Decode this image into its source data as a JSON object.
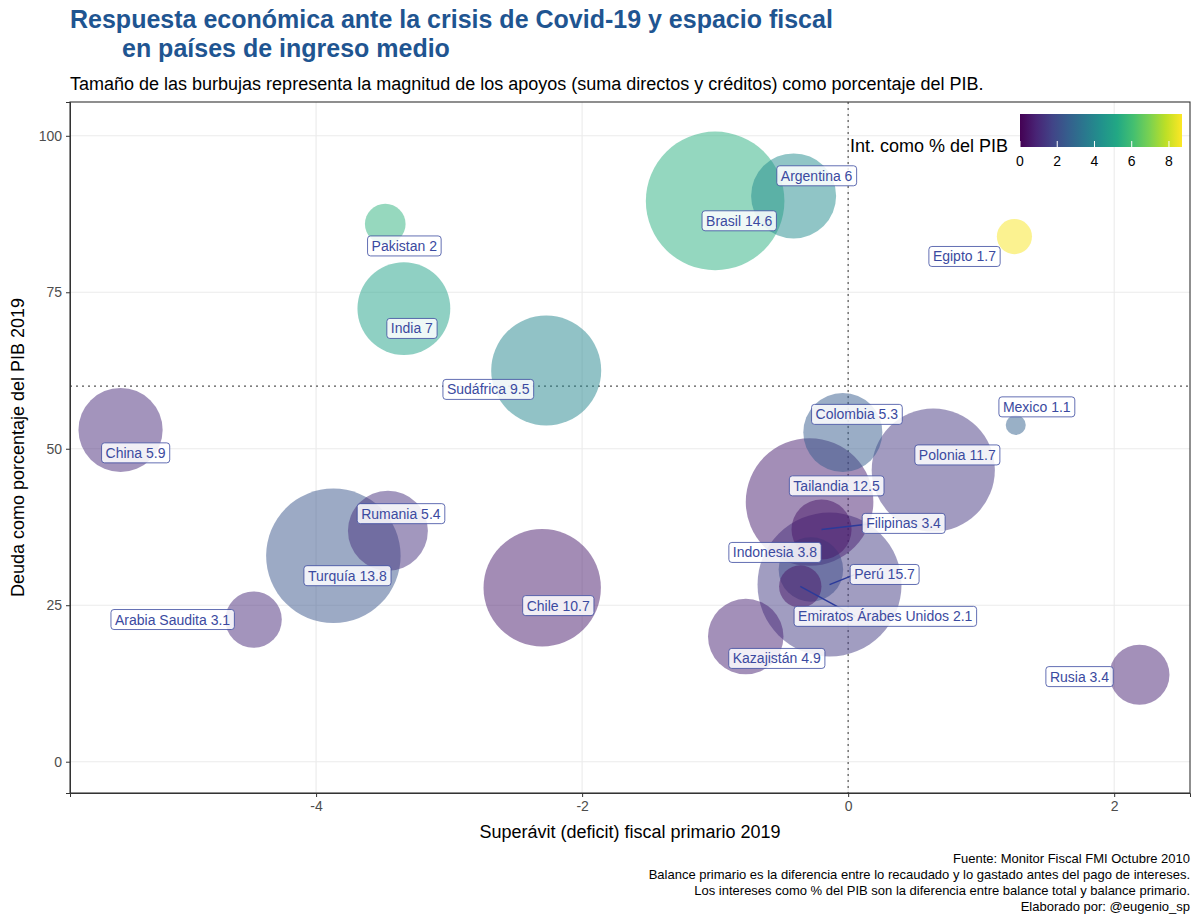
{
  "chart_data": {
    "type": "scatter",
    "title": [
      "Respuesta económica ante la crisis de Covid-19 y espacio fiscal",
      "en países de ingreso medio"
    ],
    "subtitle": "Tamaño de las burbujas representa la magnitud de los apoyos (suma directos y créditos) como porcentaje del PIB.",
    "x_label": "Superávit (deficit) fiscal primario 2019",
    "y_label": "Deuda como porcentaje del PIB 2019",
    "caption": [
      "Fuente: Monitor Fiscal FMI Octubre 2010",
      "Balance primario es la diferencia entre lo recaudado y lo gastado antes del pago de intereses.",
      "Los intereses como % del PIB son la diferencia entre balance total y balance primario.",
      "Elaborado por: @eugenio_sp"
    ],
    "xlim": [
      -5.85,
      2.57
    ],
    "ylim": [
      -5,
      105.4
    ],
    "xticks": [
      -4,
      -2,
      0,
      2
    ],
    "yticks": [
      0,
      25,
      50,
      75,
      100
    ],
    "grid": true,
    "vlines": [
      0
    ],
    "hlines": [
      60
    ],
    "labels": [
      "Perú 15.7",
      "Brasil 14.6",
      "Turquía 13.8",
      "Tailandia 12.5",
      "Polonia 11.7",
      "Chile 10.7",
      "Sudáfrica 9.5",
      "India 7",
      "Argentina 6",
      "China 5.9",
      "Rumania 5.4",
      "Colombia 5.3",
      "Kazajistán 4.9",
      "Indonesia 3.8",
      "Filipinas 3.4",
      "Rusia 3.4",
      "Arabia Saudita 3.1",
      "Emiratos Árabes Unidos 2.1",
      "Pakistan 2",
      "Egipto 1.7",
      "Mexico 1.1"
    ],
    "x": [
      -0.14,
      -1.0,
      -3.87,
      -0.29,
      0.64,
      -2.3,
      -2.27,
      -3.34,
      -0.41,
      -5.47,
      -3.46,
      -0.04,
      -0.77,
      -0.28,
      -0.2,
      2.19,
      -4.47,
      -0.36,
      -3.48,
      1.25,
      1.26
    ],
    "values": [
      28.3,
      89.6,
      32.9,
      41.5,
      46.6,
      27.8,
      62.5,
      72.4,
      90.4,
      53.0,
      36.9,
      52.6,
      20.0,
      30.7,
      37.1,
      13.9,
      22.7,
      28.0,
      85.9,
      83.9,
      53.8
    ],
    "sizes": [
      15.7,
      14.6,
      13.8,
      12.5,
      11.7,
      10.7,
      9.5,
      7,
      6,
      5.9,
      5.4,
      5.3,
      4.9,
      3.8,
      3.4,
      3.4,
      3.1,
      2.1,
      2,
      1.7,
      1.1
    ],
    "color_values": [
      1.5,
      5.5,
      2.3,
      0.7,
      1.4,
      0.6,
      4.0,
      5.0,
      4.2,
      1.0,
      1.2,
      2.5,
      0.8,
      2.0,
      0.5,
      0.8,
      1.0,
      0.5,
      5.6,
      8.6,
      2.7
    ],
    "colorbar": {
      "title": "Int. como % del PIB",
      "range": [
        0,
        8.7
      ],
      "ticks": [
        0,
        2,
        4,
        6,
        8
      ]
    }
  }
}
